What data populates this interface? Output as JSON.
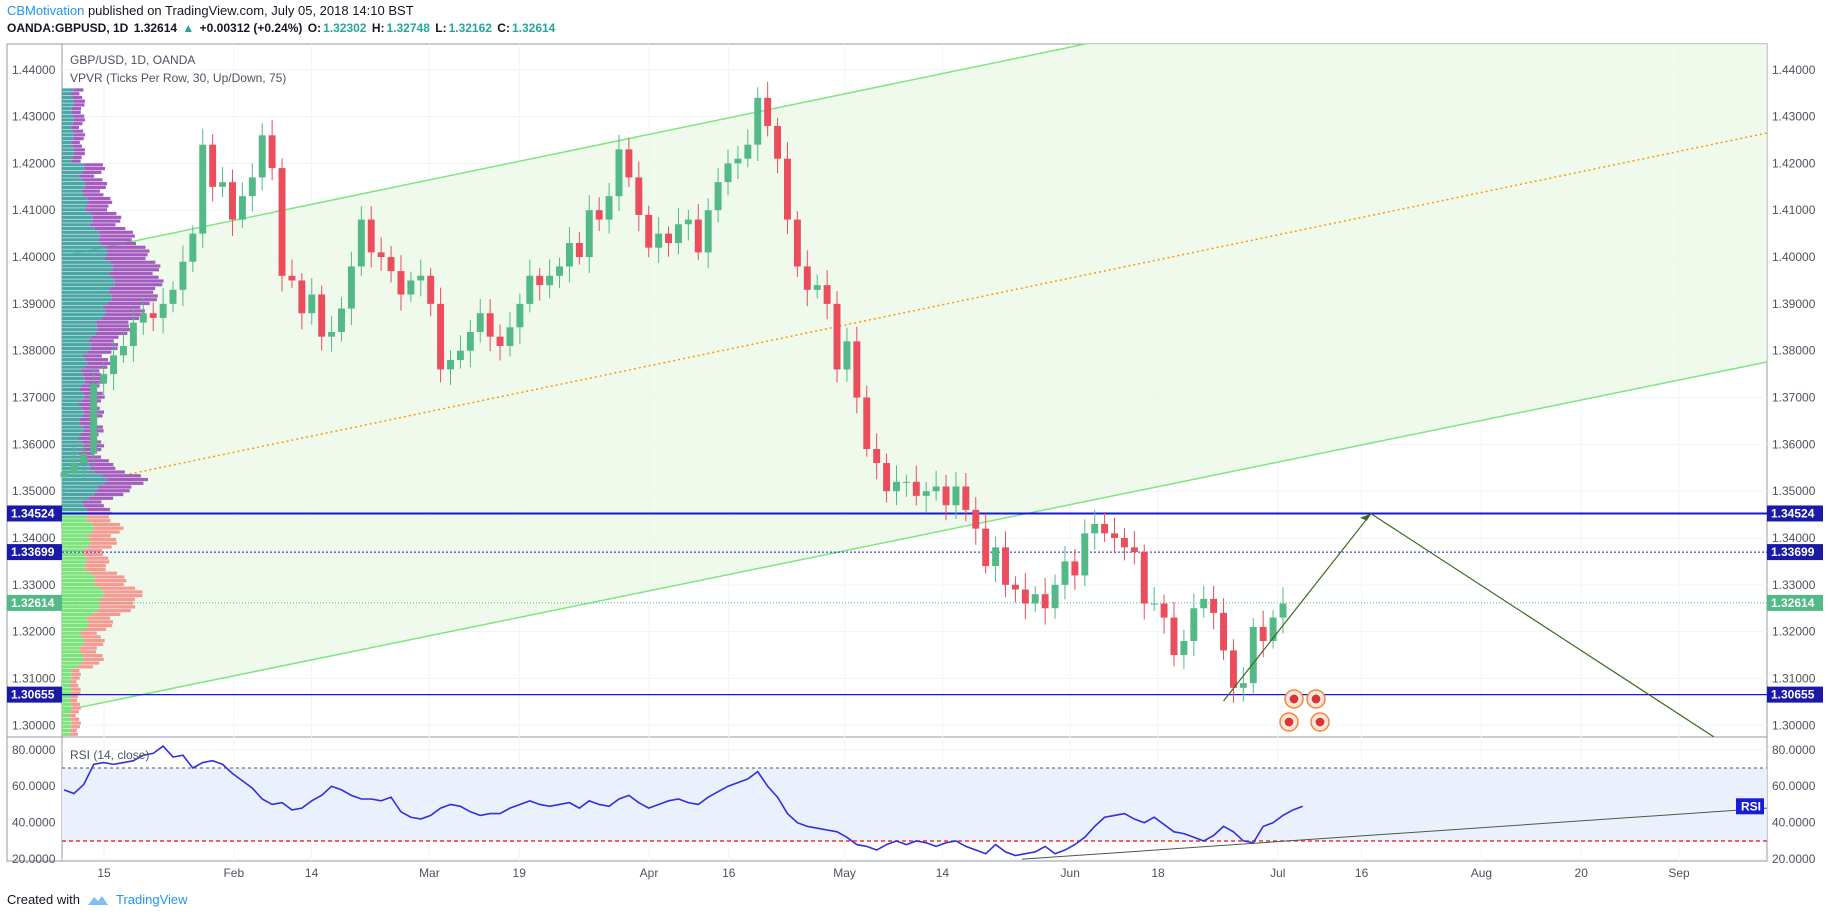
{
  "header": {
    "author": "CBMotivation",
    "published_text": "published on TradingView.com, July 05, 2018 14:10 BST",
    "symbol": "OANDA:GBPUSD, 1D",
    "last": "1.32614",
    "up_arrow": "▲",
    "change": "+0.00312 (+0.24%)",
    "o_label": "O:",
    "o_value": "1.32302",
    "h_label": "H:",
    "h_value": "1.32748",
    "l_label": "L:",
    "l_value": "1.32162",
    "c_label": "C:",
    "c_value": "1.32614"
  },
  "legend": {
    "title": "GBP/USD, 1D, OANDA",
    "indicator": "VPVR (Ticks Per Row, 30, Up/Down, 75)",
    "rsi": "RSI (14, close)",
    "rsi_tag": "RSI"
  },
  "footer": {
    "created_with": "Created with",
    "brand": "TradingView"
  },
  "colors": {
    "up": "#53b987",
    "down": "#eb4d5c",
    "channel_line": "#7fe57f",
    "channel_fill": "#eaf8e6",
    "mid_line": "#ff9800",
    "level_line": "#1717d9",
    "rsi_line": "#3030dd",
    "vol_up": "#4aa6a6",
    "vol_down": "#a55cbf",
    "vol_up_hi": "#7be37b",
    "vol_down_hi": "#f59a92",
    "tag_price": "#53b987",
    "tag_level": "#1a1aa6"
  },
  "chart_data": [
    {
      "type": "candlestick",
      "title": "GBP/USD, 1D, OANDA",
      "x_ticks": [
        "15",
        "Feb",
        "14",
        "Mar",
        "19",
        "Apr",
        "16",
        "May",
        "14",
        "Jun",
        "18",
        "Jul",
        "16",
        "Aug",
        "20",
        "Sep"
      ],
      "y_ticks": [
        "1.44000",
        "1.43000",
        "1.42000",
        "1.41000",
        "1.40000",
        "1.39000",
        "1.38000",
        "1.37000",
        "1.36000",
        "1.35000",
        "1.34000",
        "1.33000",
        "1.32000",
        "1.31000",
        "1.30000"
      ],
      "ylim": [
        1.2975,
        1.4455
      ],
      "price_tags": {
        "resistance": "1.34524",
        "mid": "1.33699",
        "last": "1.32614",
        "support": "1.30655"
      },
      "candles_close": [
        1.354,
        1.356,
        1.358,
        1.373,
        1.375,
        1.379,
        1.381,
        1.386,
        1.388,
        1.387,
        1.39,
        1.393,
        1.399,
        1.405,
        1.424,
        1.415,
        1.416,
        1.408,
        1.413,
        1.417,
        1.426,
        1.419,
        1.396,
        1.395,
        1.388,
        1.392,
        1.383,
        1.384,
        1.389,
        1.398,
        1.408,
        1.401,
        1.4,
        1.397,
        1.392,
        1.395,
        1.396,
        1.39,
        1.376,
        1.378,
        1.38,
        1.384,
        1.388,
        1.383,
        1.381,
        1.385,
        1.39,
        1.396,
        1.394,
        1.396,
        1.398,
        1.403,
        1.4,
        1.41,
        1.408,
        1.413,
        1.423,
        1.417,
        1.409,
        1.402,
        1.405,
        1.403,
        1.407,
        1.408,
        1.401,
        1.41,
        1.416,
        1.42,
        1.421,
        1.424,
        1.434,
        1.428,
        1.421,
        1.408,
        1.398,
        1.393,
        1.394,
        1.39,
        1.376,
        1.382,
        1.37,
        1.359,
        1.356,
        1.35,
        1.352,
        1.352,
        1.349,
        1.35,
        1.351,
        1.347,
        1.351,
        1.346,
        1.342,
        1.334,
        1.338,
        1.33,
        1.329,
        1.326,
        1.328,
        1.325,
        1.33,
        1.335,
        1.332,
        1.341,
        1.343,
        1.341,
        1.34,
        1.338,
        1.337,
        1.326,
        1.326,
        1.323,
        1.315,
        1.318,
        1.325,
        1.327,
        1.324,
        1.316,
        1.308,
        1.309,
        1.321,
        1.318,
        1.323,
        1.326
      ],
      "support_level": 1.30655,
      "resistance_level": 1.34524
    },
    {
      "type": "line",
      "title": "RSI (14, close)",
      "y_ticks": [
        "80.0000",
        "60.0000",
        "40.0000",
        "20.0000"
      ],
      "ylim": [
        19,
        87
      ],
      "overbought": 70,
      "oversold": 30,
      "values": [
        58,
        56,
        61,
        72,
        73,
        72,
        73,
        74,
        77,
        78,
        82,
        76,
        77,
        70,
        73,
        74,
        72,
        67,
        63,
        59,
        53,
        50,
        51,
        47,
        48,
        52,
        55,
        60,
        58,
        55,
        53,
        53,
        52,
        54,
        46,
        43,
        42,
        44,
        48,
        50,
        49,
        46,
        44,
        45,
        45,
        48,
        50,
        52,
        50,
        49,
        50,
        51,
        48,
        52,
        50,
        49,
        53,
        55,
        51,
        48,
        50,
        52,
        53,
        51,
        50,
        54,
        57,
        60,
        62,
        64,
        68,
        60,
        54,
        45,
        40,
        38,
        37,
        36,
        35,
        32,
        28,
        27,
        25,
        28,
        30,
        28,
        30,
        29,
        27,
        29,
        30,
        27,
        25,
        23,
        28,
        24,
        22,
        23,
        24,
        27,
        23,
        25,
        28,
        32,
        38,
        43,
        44,
        45,
        42,
        40,
        43,
        39,
        35,
        34,
        32,
        30,
        33,
        38,
        35,
        30,
        29,
        38,
        40,
        44,
        47,
        49
      ]
    }
  ]
}
